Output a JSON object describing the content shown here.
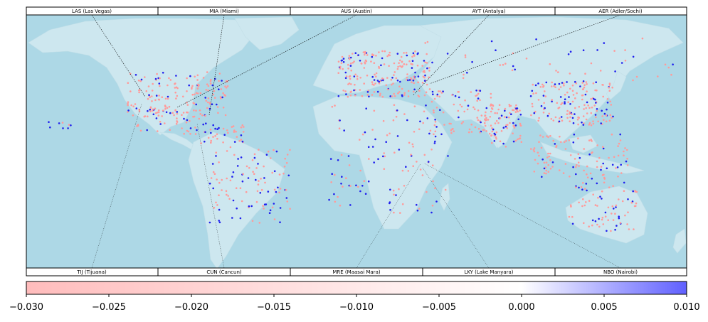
{
  "chart_data": {
    "type": "scatter",
    "map": "world airports (diverging value colored points)",
    "colorbar": {
      "min": -0.03,
      "max": 0.01,
      "ticks": [
        "−0.030",
        "−0.025",
        "−0.020",
        "−0.015",
        "−0.010",
        "−0.005",
        "0.000",
        "0.005",
        "0.010"
      ],
      "tick_values": [
        -0.03,
        -0.025,
        -0.02,
        -0.015,
        -0.01,
        -0.005,
        0.0,
        0.005,
        0.01
      ],
      "negative_color": "#ff9a9a",
      "zero_color": "#ffffff",
      "positive_color": "#6060ff"
    },
    "top_labels": [
      {
        "code": "LAS (Las Vegas)",
        "lon": -115.2,
        "lat": 36.1
      },
      {
        "code": "MIA (Miami)",
        "lon": -80.3,
        "lat": 25.8
      },
      {
        "code": "AUS (Austin)",
        "lon": -97.7,
        "lat": 30.2
      },
      {
        "code": "AYT (Antalya)",
        "lon": 30.8,
        "lat": 36.9
      },
      {
        "code": "AER (Adler/Sochi)",
        "lon": 39.9,
        "lat": 43.4
      }
    ],
    "bottom_labels": [
      {
        "code": "TIJ (Tijuana)",
        "lon": -117.0,
        "lat": 32.5
      },
      {
        "code": "CUN (Cancun)",
        "lon": -86.9,
        "lat": 21.0
      },
      {
        "code": "MRE (Maasai Mara)",
        "lon": 35.0,
        "lat": -1.4
      },
      {
        "code": "LKY (Lake Manyara)",
        "lon": 35.8,
        "lat": -3.4
      },
      {
        "code": "NBO (Nairobi)",
        "lon": 36.9,
        "lat": -1.3
      }
    ],
    "colors": {
      "ocean": "#add8e6",
      "land": "#cde7ef",
      "negative_point": "#ff9a9a",
      "positive_point": "#2020ee"
    }
  }
}
